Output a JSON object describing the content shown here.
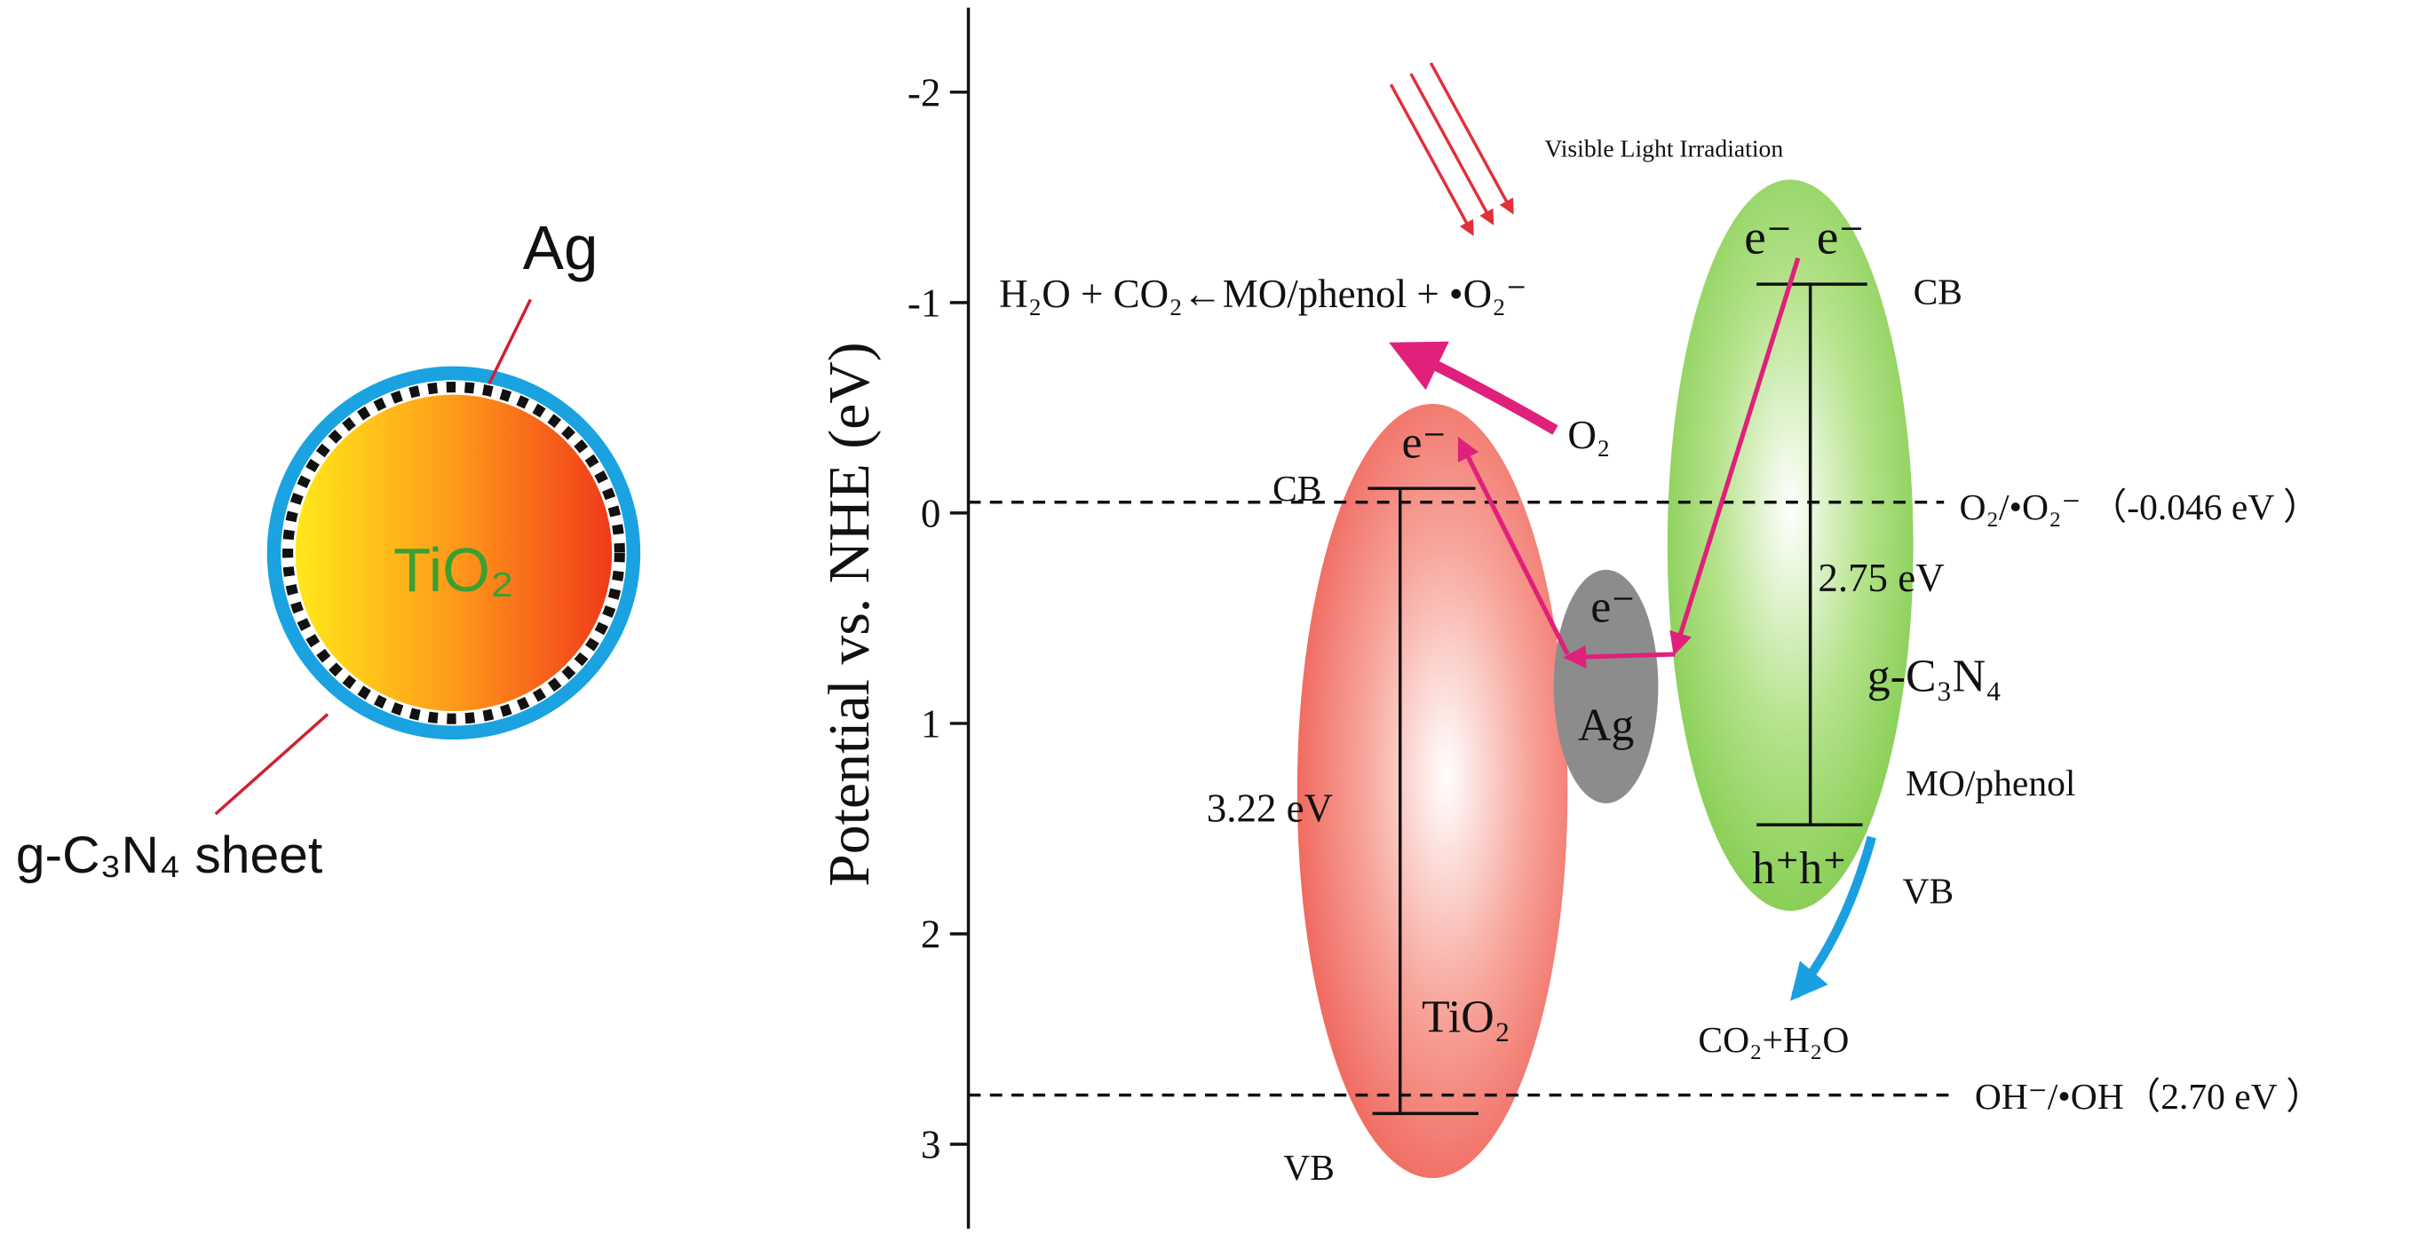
{
  "left_panel": {
    "ag_label": "Ag",
    "core_label": "TiO₂",
    "sheet_label": "g-C₃N₄ sheet"
  },
  "right_panel": {
    "axis": {
      "title": "Potential vs. NHE (eV)",
      "ticks": [
        -2,
        -1,
        0,
        1,
        2,
        3
      ]
    },
    "light_label": "Visible Light Irradiation",
    "reaction_top": "H₂O + CO₂←MO/phenol + •O₂⁻",
    "o2_label": "O₂",
    "ref_o2": "O₂/•O₂⁻ （-0.046 eV ）",
    "ref_oh": "OH⁻/•OH（2.70 eV ）",
    "tio2": {
      "cb": "CB",
      "vb": "VB",
      "gap": "3.22 eV",
      "name": "TiO₂",
      "electron": "e⁻"
    },
    "ag": {
      "electron": "e⁻",
      "name": "Ag"
    },
    "gcn": {
      "cb": "CB",
      "vb": "VB",
      "gap": "2.75 eV",
      "name": "g-C₃N₄",
      "electrons": "e⁻  e⁻",
      "holes": "h⁺h⁺"
    },
    "pollutant": "MO/phenol",
    "products": "CO₂+H₂O"
  }
}
